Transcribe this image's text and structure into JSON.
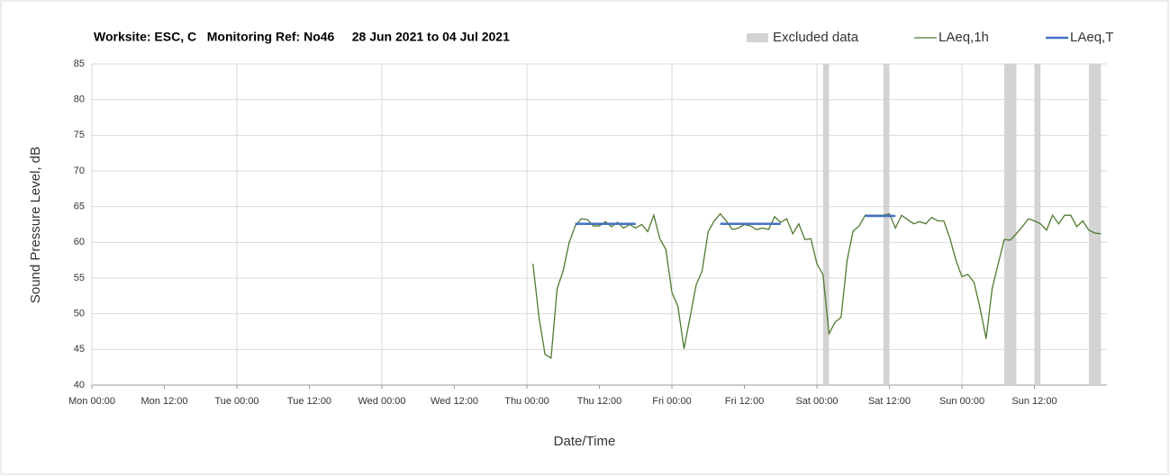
{
  "chart_data": {
    "type": "line",
    "title": "Worksite: ESC, C   Monitoring Ref: No46     28 Jun 2021 to 04 Jul 2021",
    "xlabel": "Date/Time",
    "ylabel": "Sound Pressure Level, dB",
    "xlim": [
      0,
      168
    ],
    "xticks": [
      {
        "value": 0,
        "label": "Mon 00:00"
      },
      {
        "value": 12,
        "label": "Mon 12:00"
      },
      {
        "value": 24,
        "label": "Tue 00:00"
      },
      {
        "value": 36,
        "label": "Tue 12:00"
      },
      {
        "value": 48,
        "label": "Wed 00:00"
      },
      {
        "value": 60,
        "label": "Wed 12:00"
      },
      {
        "value": 72,
        "label": "Thu 00:00"
      },
      {
        "value": 84,
        "label": "Thu 12:00"
      },
      {
        "value": 96,
        "label": "Fri 00:00"
      },
      {
        "value": 108,
        "label": "Fri 12:00"
      },
      {
        "value": 120,
        "label": "Sat 00:00"
      },
      {
        "value": 132,
        "label": "Sat 12:00"
      },
      {
        "value": 144,
        "label": "Sun 00:00"
      },
      {
        "value": 156,
        "label": "Sun 12:00"
      }
    ],
    "ylim": [
      40,
      85
    ],
    "yticks": [
      40,
      45,
      50,
      55,
      60,
      65,
      70,
      75,
      80,
      85
    ],
    "grid": true,
    "legend": "top-right",
    "excluded": {
      "name": "Excluded data",
      "color": "#d3d3d3",
      "ranges": [
        [
          121,
          122
        ],
        [
          131,
          132
        ],
        [
          151,
          153
        ],
        [
          156,
          157
        ],
        [
          165,
          167
        ]
      ]
    },
    "series": [
      {
        "name": "LAeq,1h",
        "color": "#4f7a30",
        "x": [
          73,
          74,
          75,
          76,
          77,
          78,
          79,
          80,
          81,
          82,
          83,
          84,
          85,
          86,
          87,
          88,
          89,
          90,
          91,
          92,
          93,
          94,
          95,
          96,
          97,
          98,
          99,
          100,
          101,
          102,
          103,
          104,
          105,
          106,
          107,
          108,
          109,
          110,
          111,
          112,
          113,
          114,
          115,
          116,
          117,
          118,
          119,
          120,
          121,
          122,
          123,
          124,
          125,
          126,
          127,
          128,
          129,
          130,
          131,
          132,
          133,
          134,
          135,
          136,
          137,
          138,
          139,
          140,
          141,
          142,
          143,
          144,
          145,
          146,
          147,
          148,
          149,
          150,
          151,
          152,
          153,
          154,
          155,
          156,
          157,
          158,
          159,
          160,
          161,
          162,
          163,
          164,
          165,
          166,
          167
        ],
        "values": [
          57,
          49.5,
          44.3,
          43.8,
          53.5,
          56,
          60,
          62.3,
          63.3,
          63.2,
          62.3,
          62.3,
          62.9,
          62.2,
          62.8,
          62.0,
          62.5,
          62.0,
          62.5,
          61.5,
          63.8,
          60.5,
          59,
          53,
          51,
          45.1,
          49.5,
          54,
          56,
          61.5,
          63,
          64,
          63,
          61.8,
          62,
          62.5,
          62.3,
          61.8,
          62,
          61.8,
          63.6,
          62.8,
          63.3,
          61.2,
          62.6,
          60.4,
          60.5,
          57,
          55.5,
          47.2,
          48.8,
          49.5,
          57.5,
          61.6,
          62.3,
          63.8,
          63.8,
          63.8,
          63.8,
          64,
          62,
          63.8,
          63.2,
          62.6,
          62.9,
          62.6,
          63.5,
          63,
          63,
          60.6,
          57.5,
          55.2,
          55.5,
          54.4,
          50.8,
          46.5,
          53.5,
          57,
          60.4,
          60.3,
          61.2,
          62.2,
          63.3,
          63,
          62.6,
          61.7,
          63.8,
          62.6,
          63.8,
          63.8,
          62.2,
          63,
          61.7,
          61.3,
          61.2
        ]
      }
    ],
    "mean": {
      "name": "LAeq,T",
      "color": "#4472c4",
      "segments": [
        {
          "x": [
            80,
            90
          ],
          "value": 62.6
        },
        {
          "x": [
            104,
            114
          ],
          "value": 62.6
        },
        {
          "x": [
            128,
            133
          ],
          "value": 63.7
        }
      ]
    }
  }
}
